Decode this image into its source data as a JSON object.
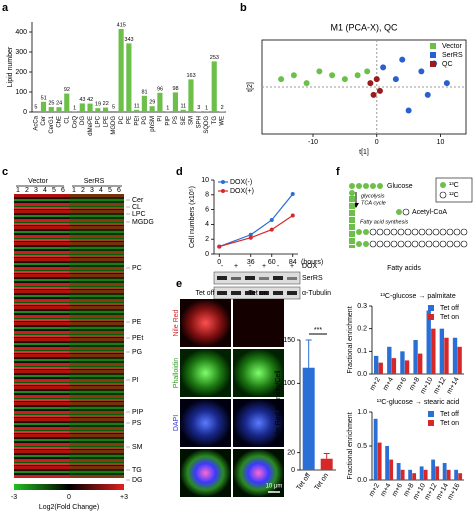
{
  "panels": [
    "a",
    "b",
    "c",
    "d",
    "e",
    "f"
  ],
  "chart_data": [
    {
      "type": "bar",
      "y_label": "Lipid number",
      "categories": [
        "AcCa",
        "Cer",
        "CerG1",
        "ChE",
        "CL",
        "CoQ",
        "DG",
        "dMePE",
        "LPC",
        "LPE",
        "MGDG",
        "PC",
        "PE",
        "PEt",
        "PG",
        "phSM",
        "PI",
        "PIP",
        "PS",
        "SiE",
        "SM",
        "SPH",
        "SQDG",
        "TG",
        "WE"
      ],
      "values": [
        5,
        51,
        25,
        24,
        92,
        1,
        43,
        42,
        19,
        22,
        5,
        415,
        343,
        11,
        81,
        29,
        96,
        1,
        98,
        11,
        163,
        3,
        1,
        253,
        2
      ],
      "color": "#6cc04a",
      "data_labels": true,
      "ylim": [
        0,
        450
      ],
      "yticks": [
        0,
        100,
        200,
        300,
        400
      ]
    },
    {
      "type": "scatter",
      "title": "M1 (PCA-X), QC",
      "x_label": "t[1]",
      "y_label": "t[2]",
      "series": [
        {
          "name": "Vector",
          "color": "#6cc04a",
          "x": [
            -15,
            -13,
            -11,
            -9,
            -7,
            -5,
            -3,
            -1.5
          ],
          "y": [
            1,
            1.5,
            0.5,
            2,
            1.5,
            1,
            1.5,
            2
          ]
        },
        {
          "name": "SerRS",
          "color": "#2a5fd0",
          "x": [
            1,
            4,
            7,
            9,
            3,
            8,
            5,
            11
          ],
          "y": [
            2.5,
            3.5,
            2,
            3,
            1,
            -1,
            -3,
            0.5
          ]
        },
        {
          "name": "QC",
          "color": "#9b1b1b",
          "x": [
            -1,
            0,
            0.5,
            -0.5
          ],
          "y": [
            0.5,
            1,
            -0.5,
            -1
          ]
        }
      ],
      "xlim": [
        -18,
        14
      ],
      "xticks": [
        -10,
        0,
        10
      ],
      "ylim": [
        -6,
        6
      ],
      "zero_lines": true,
      "legend": "top-right"
    },
    {
      "type": "line",
      "x_label": "(hours)",
      "y_label": "Cell numbers (x10⁵)",
      "x": [
        0,
        36,
        60,
        84
      ],
      "xlim": [
        -6,
        90
      ],
      "xticks": [
        0,
        36,
        60,
        84
      ],
      "series": [
        {
          "name": "DOX(-)",
          "color": "#2a6fd6",
          "values": [
            1,
            2.6,
            4.6,
            8.1
          ]
        },
        {
          "name": "DOX(+)",
          "color": "#d62828",
          "values": [
            1,
            2.2,
            3.3,
            5.2
          ]
        }
      ],
      "ylim": [
        0,
        10
      ],
      "yticks": [
        0,
        2,
        4,
        6,
        8,
        10
      ],
      "legend": "top-left"
    },
    {
      "type": "bar",
      "y_label": "Nile Red Intensity/Cell",
      "categories": [
        "Tet off",
        "Tet on"
      ],
      "values": [
        118,
        13
      ],
      "errors": [
        32,
        6
      ],
      "colors": [
        "#2a6fd6",
        "#d62828"
      ],
      "annotation": "***",
      "ylim": [
        0,
        150
      ],
      "yticks": [
        0,
        20,
        100,
        150
      ]
    },
    {
      "type": "bar",
      "title": "¹³C-glucose → palmitate",
      "y_label": "Fractional enrichment",
      "categories": [
        "m+2",
        "m+4",
        "m+6",
        "m+8",
        "m+10",
        "m+12",
        "m+14"
      ],
      "series": [
        {
          "name": "Tet off",
          "color": "#2a6fd6",
          "values": [
            0.08,
            0.12,
            0.1,
            0.15,
            0.28,
            0.2,
            0.16
          ]
        },
        {
          "name": "Tet on",
          "color": "#d62828",
          "values": [
            0.05,
            0.07,
            0.06,
            0.09,
            0.2,
            0.16,
            0.12
          ]
        }
      ],
      "ylim": [
        0,
        0.3
      ],
      "yticks": [
        {
          "value": 0,
          "label": "0.0"
        },
        0.1,
        0.2,
        0.3
      ],
      "legend": "top-right"
    },
    {
      "type": "bar",
      "title": "¹³C-glucose → stearic acid",
      "y_label": "Fractional enrichment",
      "categories": [
        "m+2",
        "m+4",
        "m+6",
        "m+8",
        "m+10",
        "m+12",
        "m+14",
        "m+16"
      ],
      "series": [
        {
          "name": "Tet off",
          "color": "#2a6fd6",
          "values": [
            0.9,
            0.5,
            0.25,
            0.15,
            0.2,
            0.3,
            0.25,
            0.15
          ]
        },
        {
          "name": "Tet on",
          "color": "#d62828",
          "values": [
            0.55,
            0.3,
            0.15,
            0.1,
            0.15,
            0.2,
            0.15,
            0.1
          ]
        }
      ],
      "ylim": [
        0,
        1
      ],
      "yticks": [
        {
          "value": 0,
          "label": "0.0"
        },
        0.5,
        {
          "value": 1,
          "label": "1.0"
        }
      ],
      "legend": "top-right"
    }
  ],
  "heatmap": {
    "groups": [
      "Vector",
      "SerRS"
    ],
    "replicates": [
      "1",
      "2",
      "3",
      "4",
      "5",
      "6"
    ],
    "classes": [
      "Cer",
      "CL",
      "LPC",
      "MGDG",
      "PC",
      "PE",
      "PEt",
      "PG",
      "PI",
      "PIP",
      "PS",
      "SM",
      "TG",
      "DG"
    ],
    "colorbar_ticks": [
      "-3",
      "0",
      "+3"
    ],
    "colorbar_label": "Log2(Fold Change)"
  },
  "blot": {
    "dox_label": "DOX",
    "dox": [
      "-",
      "+",
      "-",
      "+",
      "-",
      "+"
    ],
    "bands": [
      "SerRS",
      "α-Tubulin"
    ]
  },
  "images": {
    "columns": [
      "Tet off",
      "Tet on"
    ],
    "rows": [
      "Nile Red",
      "Phalloidin",
      "DAPI"
    ],
    "scale_bar": "10 μm"
  },
  "diagram": {
    "glucose": "Glucose",
    "glycolysis": "glycolysis",
    "tca": "TCA cycle",
    "acetyl": "Acetyl-CoA",
    "fas": "Fatty acid synthesis",
    "fatty_acids": "Fatty acids",
    "legend": [
      "¹³C",
      "¹²C"
    ]
  }
}
